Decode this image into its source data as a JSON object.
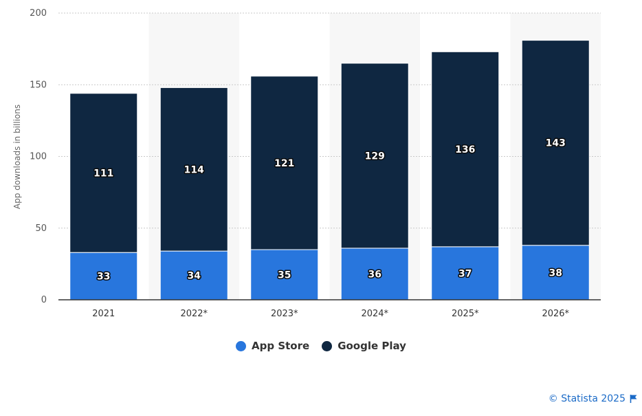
{
  "chart_data": {
    "type": "bar",
    "stacked": true,
    "categories": [
      "2021",
      "2022*",
      "2023*",
      "2024*",
      "2025*",
      "2026*"
    ],
    "series": [
      {
        "name": "App Store",
        "color": "#2876dd",
        "values": [
          33,
          34,
          35,
          36,
          37,
          38
        ]
      },
      {
        "name": "Google Play",
        "color": "#0f2741",
        "values": [
          111,
          114,
          121,
          129,
          136,
          143
        ]
      }
    ],
    "title": "",
    "xlabel": "",
    "ylabel": "App downloads in billions",
    "ylim": [
      0,
      200
    ],
    "yticks": [
      0,
      50,
      100,
      150,
      200
    ],
    "grid": true,
    "legend_position": "bottom",
    "data_labels": true
  },
  "credit": {
    "text": "© Statista 2025",
    "icon": "flag-icon"
  }
}
